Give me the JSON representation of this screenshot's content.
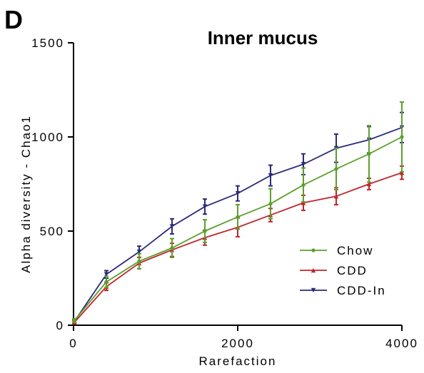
{
  "panel_letter": "D",
  "chart_data": {
    "type": "line",
    "title": "Inner mucus",
    "xlabel": "Rarefaction",
    "ylabel": "Alpha diversity - Chao1",
    "xlim": [
      0,
      4000
    ],
    "ylim": [
      0,
      1500
    ],
    "x_ticks": [
      "0",
      "2000",
      "4000"
    ],
    "y_ticks": [
      "0",
      "500",
      "1000",
      "1500"
    ],
    "x": [
      10,
      400,
      800,
      1200,
      1600,
      2000,
      2400,
      2800,
      3200,
      3600,
      4000
    ],
    "grid": false,
    "legend_position": "right",
    "series": [
      {
        "name": "Chow",
        "color": "#5aa02c",
        "marker": "circle",
        "values": [
          25,
          230,
          340,
          410,
          500,
          575,
          645,
          745,
          830,
          910,
          1000
        ],
        "errors": [
          10,
          30,
          40,
          50,
          60,
          65,
          80,
          90,
          110,
          150,
          185
        ]
      },
      {
        "name": "CDD",
        "color": "#c0262c",
        "marker": "triangle",
        "values": [
          15,
          205,
          330,
          400,
          465,
          520,
          585,
          650,
          685,
          750,
          810
        ],
        "errors": [
          8,
          20,
          30,
          35,
          40,
          50,
          35,
          40,
          45,
          30,
          35
        ]
      },
      {
        "name": "CDD-In",
        "color": "#2c2a7a",
        "marker": "triangle-down",
        "values": [
          20,
          270,
          390,
          525,
          630,
          700,
          795,
          855,
          940,
          985,
          1050
        ],
        "errors": [
          8,
          20,
          30,
          40,
          40,
          40,
          55,
          55,
          75,
          70,
          80
        ]
      }
    ]
  }
}
